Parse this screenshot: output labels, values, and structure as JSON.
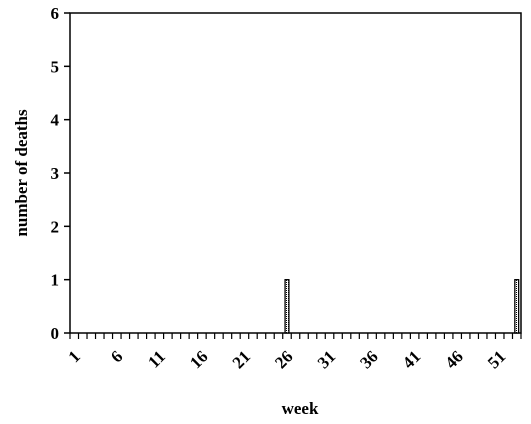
{
  "chart_data": {
    "type": "bar",
    "xlabel": "week",
    "ylabel": "number of deaths",
    "ylim": [
      0,
      6
    ],
    "y_ticks": [
      "0",
      "1",
      "2",
      "3",
      "4",
      "5",
      "6"
    ],
    "x_range": [
      1,
      53
    ],
    "x_tick_labels": [
      "1",
      "6",
      "11",
      "16",
      "21",
      "26",
      "31",
      "36",
      "41",
      "46",
      "51"
    ],
    "grid": false,
    "legend": "none",
    "bar_pattern": "dotted",
    "series": [
      {
        "points": [
          {
            "week": 26,
            "value": 1
          },
          {
            "week": 53,
            "value": 1
          }
        ]
      }
    ]
  }
}
